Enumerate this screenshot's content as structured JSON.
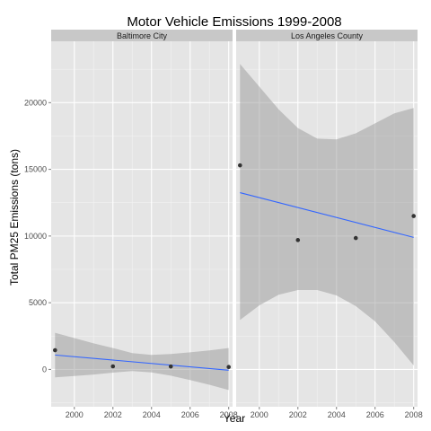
{
  "chart_data": {
    "type": "scatter",
    "title": "Motor Vehicle Emissions 1999-2008",
    "xlabel": "Year",
    "ylabel": "Total PM25 Emissions (tons)",
    "xlim": [
      1998.8,
      2008.2
    ],
    "ylim": [
      -2800,
      24600
    ],
    "xticks": [
      2000,
      2002,
      2004,
      2006,
      2008
    ],
    "yticks": [
      0,
      5000,
      10000,
      15000,
      20000
    ],
    "grid": true,
    "colors": {
      "panel_background": "#e5e5e5",
      "strip_background": "#c8c8c8",
      "grid_major": "#ffffff",
      "grid_minor": "#f2f2f2",
      "points": "#333333",
      "fit_line": "#3366ff",
      "confidence_band": "#999999"
    },
    "panels": [
      {
        "name": "Baltimore City",
        "points": [
          {
            "x": 1999,
            "y": 1440
          },
          {
            "x": 2002,
            "y": 230
          },
          {
            "x": 2005,
            "y": 220
          },
          {
            "x": 2008,
            "y": 180
          }
        ],
        "fit": [
          {
            "x": 1999,
            "y": 1080
          },
          {
            "x": 2008,
            "y": -60
          }
        ],
        "band": [
          {
            "x": 1999,
            "lower": -600,
            "upper": 2750
          },
          {
            "x": 2000,
            "lower": -500,
            "upper": 2350
          },
          {
            "x": 2001,
            "lower": -380,
            "upper": 1950
          },
          {
            "x": 2002,
            "lower": -240,
            "upper": 1600
          },
          {
            "x": 2003,
            "lower": -130,
            "upper": 1220
          },
          {
            "x": 2004,
            "lower": -220,
            "upper": 1090
          },
          {
            "x": 2005,
            "lower": -470,
            "upper": 1150
          },
          {
            "x": 2006,
            "lower": -800,
            "upper": 1280
          },
          {
            "x": 2007,
            "lower": -1150,
            "upper": 1420
          },
          {
            "x": 2008,
            "lower": -1550,
            "upper": 1600
          }
        ]
      },
      {
        "name": "Los Angeles County",
        "points": [
          {
            "x": 1999,
            "y": 15300
          },
          {
            "x": 2002,
            "y": 9700
          },
          {
            "x": 2005,
            "y": 9850
          },
          {
            "x": 2008,
            "y": 11500
          }
        ],
        "fit": [
          {
            "x": 1999,
            "y": 13250
          },
          {
            "x": 2008,
            "y": 9900
          }
        ],
        "band": [
          {
            "x": 1999,
            "lower": 3700,
            "upper": 22900
          },
          {
            "x": 2000,
            "lower": 4800,
            "upper": 21200
          },
          {
            "x": 2001,
            "lower": 5600,
            "upper": 19500
          },
          {
            "x": 2002,
            "lower": 5950,
            "upper": 18100
          },
          {
            "x": 2003,
            "lower": 5950,
            "upper": 17300
          },
          {
            "x": 2004,
            "lower": 5550,
            "upper": 17250
          },
          {
            "x": 2005,
            "lower": 4750,
            "upper": 17700
          },
          {
            "x": 2006,
            "lower": 3600,
            "upper": 18450
          },
          {
            "x": 2007,
            "lower": 2050,
            "upper": 19200
          },
          {
            "x": 2008,
            "lower": 300,
            "upper": 19600
          }
        ]
      }
    ]
  }
}
